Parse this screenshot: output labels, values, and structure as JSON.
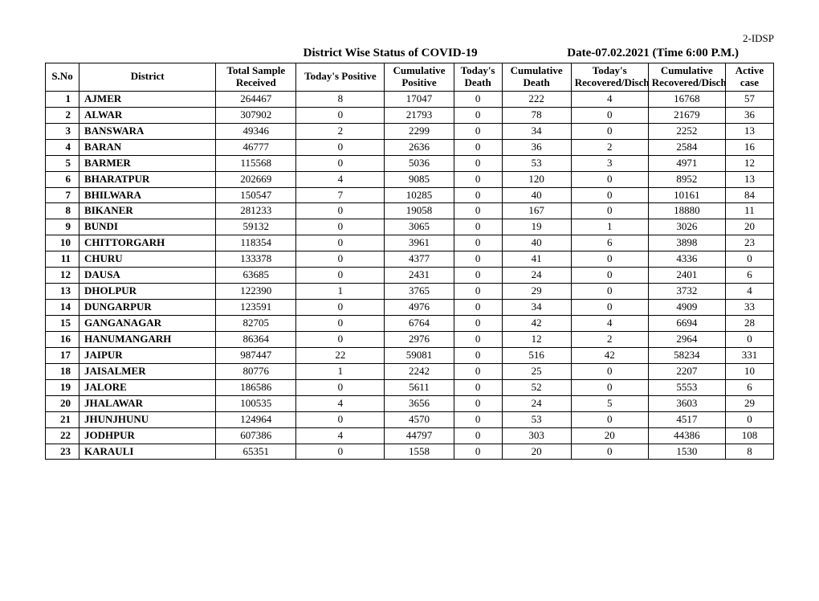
{
  "doc_code": "2-IDSP",
  "title": "District Wise Status of  COVID-19",
  "date_text": "Date-07.02.2021 (Time 6:00 P.M.)",
  "headers": {
    "sno": "S.No",
    "district": "District",
    "total_sample": "Total Sample Received",
    "today_positive": "Today's Positive",
    "cumulative_positive": "Cumulative Positive",
    "today_death": "Today's Death",
    "cumulative_death": "Cumulative Death",
    "today_recovered": "Today's Recovered/Discharged",
    "cumulative_recovered": "Cumulative Recovered/Discharged",
    "active_case": "Active case"
  },
  "rows": [
    {
      "sno": "1",
      "district": "AJMER",
      "sample": "264467",
      "tpos": "8",
      "cpos": "17047",
      "tdth": "0",
      "cdth": "222",
      "trec": "4",
      "crec": "16768",
      "act": "57"
    },
    {
      "sno": "2",
      "district": "ALWAR",
      "sample": "307902",
      "tpos": "0",
      "cpos": "21793",
      "tdth": "0",
      "cdth": "78",
      "trec": "0",
      "crec": "21679",
      "act": "36"
    },
    {
      "sno": "3",
      "district": "BANSWARA",
      "sample": "49346",
      "tpos": "2",
      "cpos": "2299",
      "tdth": "0",
      "cdth": "34",
      "trec": "0",
      "crec": "2252",
      "act": "13"
    },
    {
      "sno": "4",
      "district": "BARAN",
      "sample": "46777",
      "tpos": "0",
      "cpos": "2636",
      "tdth": "0",
      "cdth": "36",
      "trec": "2",
      "crec": "2584",
      "act": "16"
    },
    {
      "sno": "5",
      "district": "BARMER",
      "sample": "115568",
      "tpos": "0",
      "cpos": "5036",
      "tdth": "0",
      "cdth": "53",
      "trec": "3",
      "crec": "4971",
      "act": "12"
    },
    {
      "sno": "6",
      "district": "BHARATPUR",
      "sample": "202669",
      "tpos": "4",
      "cpos": "9085",
      "tdth": "0",
      "cdth": "120",
      "trec": "0",
      "crec": "8952",
      "act": "13"
    },
    {
      "sno": "7",
      "district": "BHILWARA",
      "sample": "150547",
      "tpos": "7",
      "cpos": "10285",
      "tdth": "0",
      "cdth": "40",
      "trec": "0",
      "crec": "10161",
      "act": "84"
    },
    {
      "sno": "8",
      "district": "BIKANER",
      "sample": "281233",
      "tpos": "0",
      "cpos": "19058",
      "tdth": "0",
      "cdth": "167",
      "trec": "0",
      "crec": "18880",
      "act": "11"
    },
    {
      "sno": "9",
      "district": "BUNDI",
      "sample": "59132",
      "tpos": "0",
      "cpos": "3065",
      "tdth": "0",
      "cdth": "19",
      "trec": "1",
      "crec": "3026",
      "act": "20"
    },
    {
      "sno": "10",
      "district": "CHITTORGARH",
      "sample": "118354",
      "tpos": "0",
      "cpos": "3961",
      "tdth": "0",
      "cdth": "40",
      "trec": "6",
      "crec": "3898",
      "act": "23"
    },
    {
      "sno": "11",
      "district": "CHURU",
      "sample": "133378",
      "tpos": "0",
      "cpos": "4377",
      "tdth": "0",
      "cdth": "41",
      "trec": "0",
      "crec": "4336",
      "act": "0"
    },
    {
      "sno": "12",
      "district": "DAUSA",
      "sample": "63685",
      "tpos": "0",
      "cpos": "2431",
      "tdth": "0",
      "cdth": "24",
      "trec": "0",
      "crec": "2401",
      "act": "6"
    },
    {
      "sno": "13",
      "district": "DHOLPUR",
      "sample": "122390",
      "tpos": "1",
      "cpos": "3765",
      "tdth": "0",
      "cdth": "29",
      "trec": "0",
      "crec": "3732",
      "act": "4"
    },
    {
      "sno": "14",
      "district": "DUNGARPUR",
      "sample": "123591",
      "tpos": "0",
      "cpos": "4976",
      "tdth": "0",
      "cdth": "34",
      "trec": "0",
      "crec": "4909",
      "act": "33"
    },
    {
      "sno": "15",
      "district": "GANGANAGAR",
      "sample": "82705",
      "tpos": "0",
      "cpos": "6764",
      "tdth": "0",
      "cdth": "42",
      "trec": "4",
      "crec": "6694",
      "act": "28"
    },
    {
      "sno": "16",
      "district": "HANUMANGARH",
      "sample": "86364",
      "tpos": "0",
      "cpos": "2976",
      "tdth": "0",
      "cdth": "12",
      "trec": "2",
      "crec": "2964",
      "act": "0"
    },
    {
      "sno": "17",
      "district": "JAIPUR",
      "sample": "987447",
      "tpos": "22",
      "cpos": "59081",
      "tdth": "0",
      "cdth": "516",
      "trec": "42",
      "crec": "58234",
      "act": "331"
    },
    {
      "sno": "18",
      "district": "JAISALMER",
      "sample": "80776",
      "tpos": "1",
      "cpos": "2242",
      "tdth": "0",
      "cdth": "25",
      "trec": "0",
      "crec": "2207",
      "act": "10"
    },
    {
      "sno": "19",
      "district": "JALORE",
      "sample": "186586",
      "tpos": "0",
      "cpos": "5611",
      "tdth": "0",
      "cdth": "52",
      "trec": "0",
      "crec": "5553",
      "act": "6"
    },
    {
      "sno": "20",
      "district": "JHALAWAR",
      "sample": "100535",
      "tpos": "4",
      "cpos": "3656",
      "tdth": "0",
      "cdth": "24",
      "trec": "5",
      "crec": "3603",
      "act": "29"
    },
    {
      "sno": "21",
      "district": "JHUNJHUNU",
      "sample": "124964",
      "tpos": "0",
      "cpos": "4570",
      "tdth": "0",
      "cdth": "53",
      "trec": "0",
      "crec": "4517",
      "act": "0"
    },
    {
      "sno": "22",
      "district": "JODHPUR",
      "sample": "607386",
      "tpos": "4",
      "cpos": "44797",
      "tdth": "0",
      "cdth": "303",
      "trec": "20",
      "crec": "44386",
      "act": "108"
    },
    {
      "sno": "23",
      "district": "KARAULI",
      "sample": "65351",
      "tpos": "0",
      "cpos": "1558",
      "tdth": "0",
      "cdth": "20",
      "trec": "0",
      "crec": "1530",
      "act": "8"
    }
  ]
}
